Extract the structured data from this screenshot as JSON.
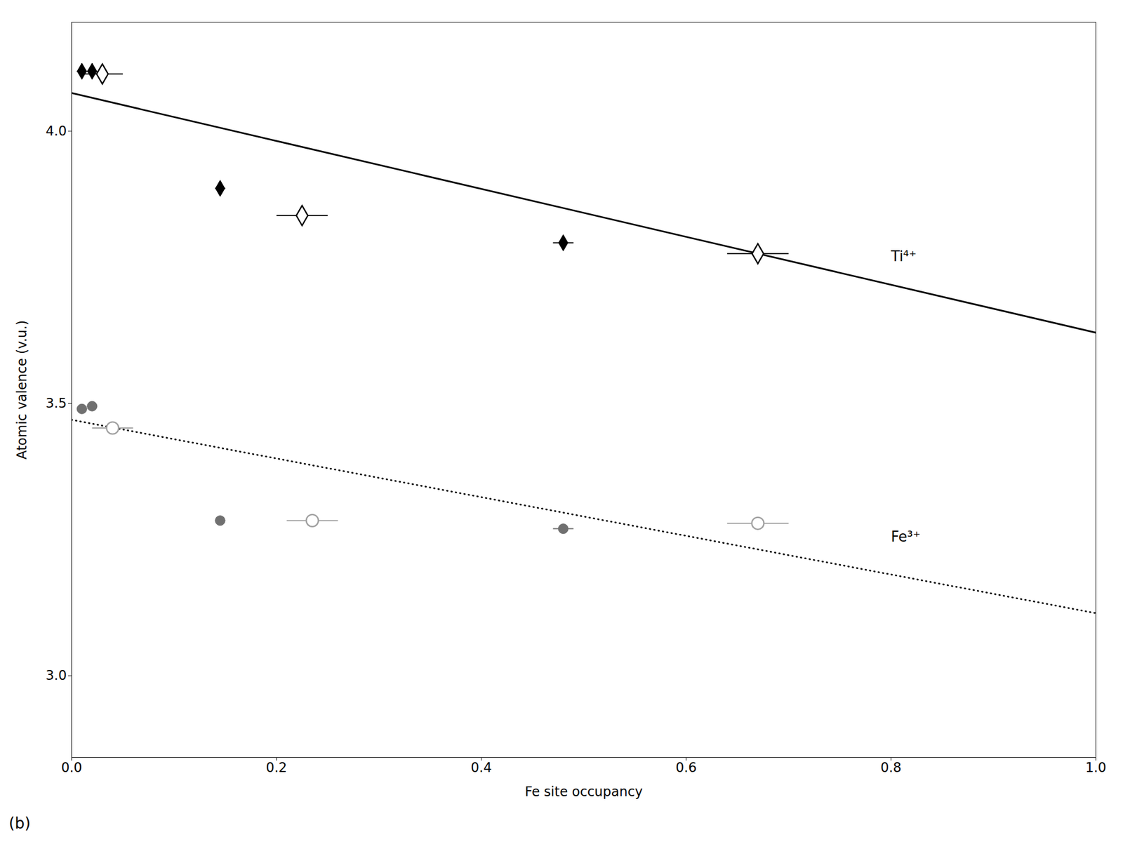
{
  "chart_data": {
    "type": "scatter",
    "xlabel": "Fe site occupancy",
    "ylabel": "Atomic valence (v.u.)",
    "panel_label": "(b)",
    "xlim": [
      0.0,
      1.0
    ],
    "ylim": [
      2.85,
      4.2
    ],
    "xticks": [
      {
        "value": 0.0,
        "label": "0.0"
      },
      0.2,
      0.4,
      0.6,
      0.8,
      {
        "value": 1.0,
        "label": "1.0"
      }
    ],
    "yticks": [
      {
        "value": 3.0,
        "label": "3.0"
      },
      {
        "value": 3.5,
        "label": "3.5"
      },
      {
        "value": 4.0,
        "label": "4.0"
      }
    ],
    "grid": false,
    "series": [
      {
        "type": "line",
        "color": "#000000",
        "line_style": "solid",
        "x": [
          0.0,
          1.0
        ],
        "values": [
          4.07,
          3.63
        ]
      },
      {
        "type": "line",
        "color": "#000000",
        "line_style": "dotted",
        "x": [
          0.0,
          1.0
        ],
        "values": [
          3.47,
          3.115
        ]
      },
      {
        "type": "scatter",
        "marker": "diamond",
        "color": "#000000",
        "x": [
          0.01,
          0.02,
          0.145,
          0.48
        ],
        "values": [
          4.11,
          4.11,
          3.895,
          3.795
        ],
        "xerr": [
          0.005,
          0.005,
          0.005,
          0.01
        ],
        "yerr": [
          0.005,
          0.005,
          0.005,
          0.005
        ]
      },
      {
        "type": "scatter",
        "marker": "open_diamond",
        "color": "#000000",
        "x": [
          0.03,
          0.225,
          0.67
        ],
        "values": [
          4.105,
          3.845,
          3.775
        ],
        "xerr": [
          0.02,
          0.025,
          0.03
        ],
        "yerr": [
          0.005,
          0.005,
          0.005
        ]
      },
      {
        "type": "scatter",
        "marker": "circle",
        "color": "#707070",
        "x": [
          0.01,
          0.02,
          0.145,
          0.48
        ],
        "values": [
          3.49,
          3.495,
          3.285,
          3.27
        ],
        "xerr": [
          0.005,
          0.005,
          0.005,
          0.01
        ],
        "yerr": [
          0.005,
          0.005,
          0.005,
          0.005
        ]
      },
      {
        "type": "scatter",
        "marker": "open_circle",
        "color": "#a0a0a0",
        "x": [
          0.04,
          0.235,
          0.67
        ],
        "values": [
          3.455,
          3.285,
          3.28
        ],
        "xerr": [
          0.02,
          0.025,
          0.03
        ],
        "yerr": [
          0.005,
          0.005,
          0.005
        ]
      }
    ],
    "annotations": [
      {
        "text": "Ti⁴⁺",
        "x": 0.8,
        "y": 3.77
      },
      {
        "text": "Fe³⁺",
        "x": 0.8,
        "y": 3.255
      }
    ]
  }
}
